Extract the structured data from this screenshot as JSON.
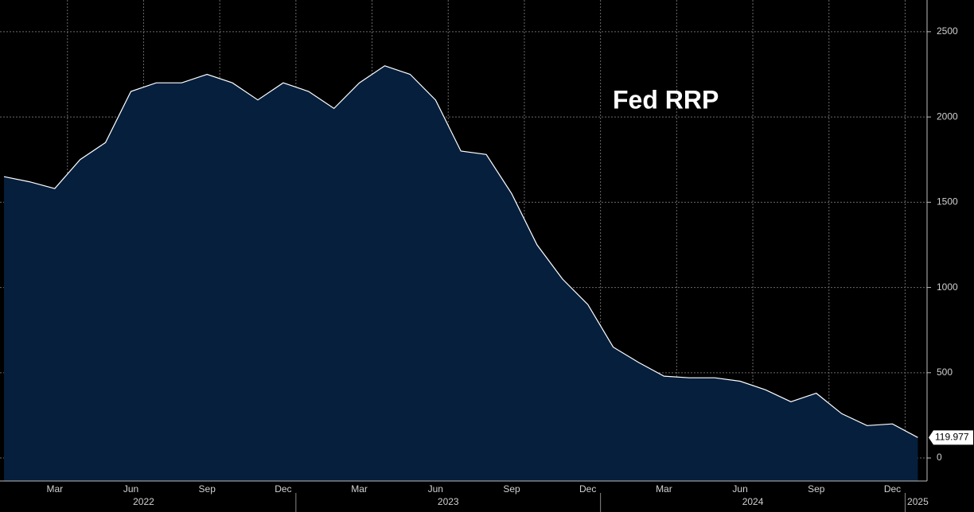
{
  "chart_data": {
    "type": "area",
    "title": "Fed RRP",
    "x": [
      "2022-01",
      "2022-02",
      "2022-03",
      "2022-04",
      "2022-05",
      "2022-06",
      "2022-07",
      "2022-08",
      "2022-09",
      "2022-10",
      "2022-11",
      "2022-12",
      "2023-01",
      "2023-02",
      "2023-03",
      "2023-04",
      "2023-05",
      "2023-06",
      "2023-07",
      "2023-08",
      "2023-09",
      "2023-10",
      "2023-11",
      "2023-12",
      "2024-01",
      "2024-02",
      "2024-03",
      "2024-04",
      "2024-05",
      "2024-06",
      "2024-07",
      "2024-08",
      "2024-09",
      "2024-10",
      "2024-11",
      "2024-12",
      "2025-01"
    ],
    "values": [
      1650,
      1620,
      1580,
      1750,
      1850,
      2150,
      2200,
      2200,
      2250,
      2200,
      2100,
      2200,
      2150,
      2050,
      2200,
      2300,
      2250,
      2100,
      1800,
      1780,
      1550,
      1250,
      1050,
      900,
      650,
      560,
      480,
      470,
      470,
      450,
      400,
      330,
      380,
      260,
      190,
      200,
      119.977
    ],
    "color": "#061f3d",
    "line_color": "#ffffff",
    "xlim": [
      "2022-01",
      "2025-01"
    ],
    "xticks": [
      {
        "value": "2022-03",
        "label": "Mar"
      },
      {
        "value": "2022-06",
        "label": "Jun"
      },
      {
        "value": "2022-09",
        "label": "Sep"
      },
      {
        "value": "2022-12",
        "label": "Dec"
      },
      {
        "value": "2023-03",
        "label": "Mar"
      },
      {
        "value": "2023-06",
        "label": "Jun"
      },
      {
        "value": "2023-09",
        "label": "Sep"
      },
      {
        "value": "2023-12",
        "label": "Dec"
      },
      {
        "value": "2024-03",
        "label": "Mar"
      },
      {
        "value": "2024-06",
        "label": "Jun"
      },
      {
        "value": "2024-09",
        "label": "Sep"
      },
      {
        "value": "2024-12",
        "label": "Dec"
      }
    ],
    "years": [
      "2022",
      "2023",
      "2024",
      "2025"
    ],
    "ylim": [
      -135,
      2686
    ],
    "yticks": [
      0,
      500,
      1000,
      1500,
      2000,
      2500
    ],
    "grid": true
  }
}
